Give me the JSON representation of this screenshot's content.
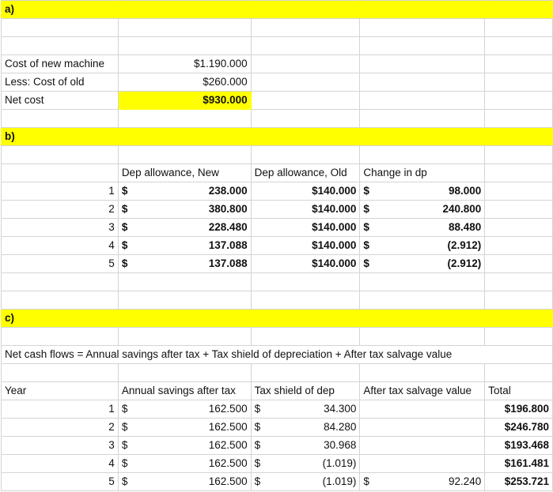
{
  "sections": {
    "a": "a)",
    "b": "b)",
    "c": "c)"
  },
  "part_a": {
    "cost_new_label": "Cost of new machine",
    "cost_new_value": "$1.190.000",
    "cost_old_label": "Less: Cost of old",
    "cost_old_value": "$260.000",
    "net_cost_label": "Net cost",
    "net_cost_value": "$930.000"
  },
  "part_b": {
    "headers": [
      "Dep allowance, New",
      "Dep allowance, Old",
      "Change in dp"
    ],
    "rows": [
      {
        "year": "1",
        "new": "238.000",
        "old": "$140.000",
        "change": "98.000"
      },
      {
        "year": "2",
        "new": "380.800",
        "old": "$140.000",
        "change": "240.800"
      },
      {
        "year": "3",
        "new": "228.480",
        "old": "$140.000",
        "change": "88.480"
      },
      {
        "year": "4",
        "new": "137.088",
        "old": "$140.000",
        "change": "(2.912)"
      },
      {
        "year": "5",
        "new": "137.088",
        "old": "$140.000",
        "change": "(2.912)"
      }
    ],
    "currency": "$"
  },
  "part_c": {
    "formula": "Net cash flows = Annual savings after tax + Tax shield of depreciation + After tax salvage value",
    "headers": [
      "Year",
      "Annual savings after tax",
      "Tax shield of dep",
      "After tax salvage value",
      "Total"
    ],
    "rows": [
      {
        "year": "1",
        "savings": "162.500",
        "shield": "34.300",
        "salvage": "",
        "total": "$196.800"
      },
      {
        "year": "2",
        "savings": "162.500",
        "shield": "84.280",
        "salvage": "",
        "total": "$246.780"
      },
      {
        "year": "3",
        "savings": "162.500",
        "shield": "30.968",
        "salvage": "",
        "total": "$193.468"
      },
      {
        "year": "4",
        "savings": "162.500",
        "shield": "(1.019)",
        "salvage": "",
        "total": "$161.481"
      },
      {
        "year": "5",
        "savings": "162.500",
        "shield": "(1.019)",
        "salvage": "92.240",
        "total": "$253.721"
      }
    ],
    "currency": "$"
  },
  "colors": {
    "highlight": "#ffff00",
    "gridline": "#d4d4d4"
  }
}
